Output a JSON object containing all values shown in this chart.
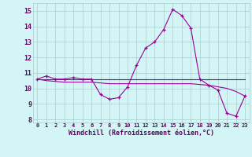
{
  "hours": [
    0,
    1,
    2,
    3,
    4,
    5,
    6,
    7,
    8,
    9,
    10,
    11,
    12,
    13,
    14,
    15,
    16,
    17,
    18,
    19,
    20,
    21,
    22,
    23
  ],
  "windchill": [
    10.6,
    10.8,
    10.6,
    10.6,
    10.7,
    10.6,
    10.6,
    9.6,
    9.3,
    9.4,
    10.1,
    11.5,
    12.6,
    13.0,
    13.8,
    15.1,
    14.7,
    13.9,
    10.6,
    10.2,
    9.9,
    8.4,
    8.2,
    9.5
  ],
  "temp_line": [
    10.6,
    10.6,
    10.6,
    10.6,
    10.6,
    10.6,
    10.6,
    10.6,
    10.6,
    10.6,
    10.6,
    10.6,
    10.6,
    10.6,
    10.6,
    10.6,
    10.6,
    10.6,
    10.6,
    10.6,
    10.6,
    10.6,
    10.6,
    10.6
  ],
  "dewpoint_line": [
    10.6,
    10.5,
    10.45,
    10.4,
    10.4,
    10.4,
    10.4,
    10.35,
    10.3,
    10.3,
    10.3,
    10.3,
    10.3,
    10.3,
    10.3,
    10.3,
    10.3,
    10.3,
    10.25,
    10.2,
    10.1,
    10.0,
    9.8,
    9.5
  ],
  "line_color": "#990099",
  "bg_color": "#d4f5f5",
  "grid_color": "#aacccc",
  "axis_color": "#660066",
  "ylim": [
    7.8,
    15.5
  ],
  "xlim": [
    0,
    23
  ],
  "yticks": [
    8,
    9,
    10,
    11,
    12,
    13,
    14,
    15
  ],
  "xlabel": "Windchill (Refroidissement éolien,°C)"
}
